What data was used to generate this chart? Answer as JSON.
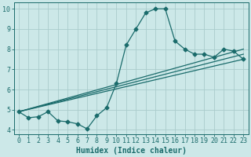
{
  "xlabel": "Humidex (Indice chaleur)",
  "bg_color": "#cce8e8",
  "grid_color": "#aacccc",
  "line_color": "#1a6b6b",
  "spine_color": "#1a6b6b",
  "xlim": [
    -0.5,
    23.5
  ],
  "ylim": [
    3.8,
    10.3
  ],
  "yticks": [
    4,
    5,
    6,
    7,
    8,
    9,
    10
  ],
  "xticks": [
    0,
    1,
    2,
    3,
    4,
    5,
    6,
    7,
    8,
    9,
    10,
    11,
    12,
    13,
    14,
    15,
    16,
    17,
    18,
    19,
    20,
    21,
    22,
    23
  ],
  "line1_x": [
    0,
    1,
    2,
    3,
    4,
    5,
    6,
    7,
    8,
    9,
    10,
    11,
    12,
    13,
    14,
    15,
    16,
    17,
    18,
    19,
    20,
    21,
    22,
    23
  ],
  "line1_y": [
    4.9,
    4.6,
    4.65,
    4.9,
    4.45,
    4.4,
    4.3,
    4.05,
    4.7,
    5.1,
    6.3,
    8.2,
    9.0,
    9.8,
    10.0,
    10.0,
    8.4,
    8.0,
    7.75,
    7.75,
    7.6,
    8.0,
    7.9,
    7.5
  ],
  "line2_x": [
    0,
    23
  ],
  "line2_y": [
    4.9,
    7.5
  ],
  "line3_x": [
    0,
    23
  ],
  "line3_y": [
    4.9,
    7.75
  ],
  "line4_x": [
    0,
    23
  ],
  "line4_y": [
    4.9,
    8.0
  ],
  "marker_size": 2.5,
  "tick_font_size": 6,
  "xlabel_font_size": 7
}
